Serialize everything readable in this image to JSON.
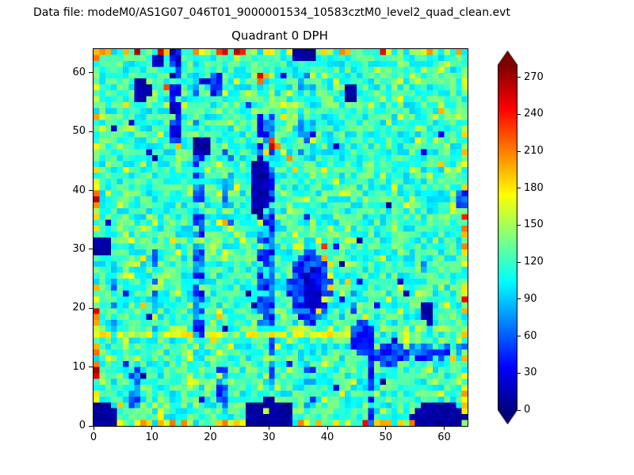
{
  "header": {
    "datafile_label": "Data file: modeM0/AS1G07_046T01_9000001534_10583cztM0_level2_quad_clean.evt"
  },
  "chart_data": {
    "type": "heatmap",
    "title": "Quadrant 0 DPH",
    "xlabel": "",
    "ylabel": "",
    "xlim": [
      0,
      64
    ],
    "ylim": [
      0,
      64
    ],
    "xticks": [
      0,
      10,
      20,
      30,
      40,
      50,
      60
    ],
    "yticks": [
      0,
      10,
      20,
      30,
      40,
      50,
      60
    ],
    "grid": {
      "nx": 64,
      "ny": 64
    },
    "colormap": "jet",
    "colorbar": {
      "ticks": [
        0,
        30,
        60,
        90,
        120,
        150,
        180,
        210,
        240,
        270
      ],
      "vmin": 0,
      "vmax": 280,
      "extend": "both",
      "over_color": "#7f0000",
      "under_color": "#00007f"
    },
    "seed": 1534,
    "background": {
      "mean": 118,
      "spread": 26
    },
    "features": {
      "edge_hot": {
        "p": 0.45,
        "v0": 140,
        "v1": 215,
        "red_p": 0.05,
        "red_v0": 232,
        "red_v1": 272
      },
      "stripes": [
        {
          "x0": 0,
          "x1": 46,
          "y0": 15,
          "y1": 15,
          "v0": 145,
          "v1": 190,
          "p": 0.75
        },
        {
          "x0": 0,
          "x1": 63,
          "y0": 16,
          "y1": 16,
          "v0": 138,
          "v1": 160,
          "p": 0.25
        },
        {
          "x0": 16,
          "x1": 16,
          "y0": 1,
          "y1": 14,
          "v0": 145,
          "v1": 175,
          "p": 0.4
        },
        {
          "x0": 2,
          "x1": 8,
          "y0": 31,
          "y1": 32,
          "v0": 145,
          "v1": 180,
          "p": 0.3
        },
        {
          "x0": 13,
          "x1": 14,
          "y0": 48,
          "y1": 63,
          "v0": 5,
          "v1": 60,
          "p": 0.85
        },
        {
          "x0": 17,
          "x1": 18,
          "y0": 15,
          "y1": 48,
          "v0": 25,
          "v1": 90,
          "p": 0.75
        },
        {
          "x0": 17,
          "x1": 17,
          "y0": 49,
          "y1": 59,
          "v0": 60,
          "v1": 100,
          "p": 0.45
        },
        {
          "x0": 28,
          "x1": 30,
          "y0": 16,
          "y1": 52,
          "v0": 25,
          "v1": 85,
          "p": 0.7
        },
        {
          "x0": 30,
          "x1": 30,
          "y0": 0,
          "y1": 15,
          "v0": 35,
          "v1": 90,
          "p": 0.8
        },
        {
          "x0": 35,
          "x1": 37,
          "y0": 45,
          "y1": 63,
          "v0": 55,
          "v1": 100,
          "p": 0.45
        },
        {
          "x0": 47,
          "x1": 47,
          "y0": 0,
          "y1": 14,
          "v0": 30,
          "v1": 85,
          "p": 0.85
        },
        {
          "x0": 21,
          "x1": 22,
          "y0": 3,
          "y1": 9,
          "v0": 35,
          "v1": 90,
          "p": 0.7
        },
        {
          "x0": 6,
          "x1": 7,
          "y0": 3,
          "y1": 9,
          "v0": 35,
          "v1": 85,
          "p": 0.65
        },
        {
          "x0": 10,
          "x1": 10,
          "y0": 16,
          "y1": 30,
          "v0": 55,
          "v1": 95,
          "p": 0.55
        },
        {
          "x0": 3,
          "x1": 3,
          "y0": 16,
          "y1": 27,
          "v0": 55,
          "v1": 95,
          "p": 0.45
        },
        {
          "x0": 22,
          "x1": 23,
          "y0": 33,
          "y1": 47,
          "v0": 55,
          "v1": 95,
          "p": 0.4
        },
        {
          "x0": 50,
          "x1": 63,
          "y0": 11,
          "y1": 13,
          "v0": 30,
          "v1": 85,
          "p": 0.65
        },
        {
          "x0": 36,
          "x1": 37,
          "y0": 3,
          "y1": 9,
          "v0": 40,
          "v1": 85,
          "p": 0.55
        },
        {
          "x0": 56,
          "x1": 56,
          "y0": 26,
          "y1": 34,
          "v0": 70,
          "v1": 100,
          "p": 0.4
        },
        {
          "x0": 41,
          "x1": 44,
          "y0": 18,
          "y1": 22,
          "v0": 50,
          "v1": 95,
          "p": 0.35
        }
      ],
      "blobs": [
        {
          "x": 36.5,
          "y": 23,
          "rx": 3.6,
          "ry": 6.2,
          "v0": 30,
          "v1": 75
        },
        {
          "x": 37,
          "y": 22.5,
          "rx": 2.0,
          "ry": 3.8,
          "v0": 8,
          "v1": 45
        },
        {
          "x": 45.5,
          "y": 14.5,
          "rx": 2.3,
          "ry": 2.6,
          "v0": 30,
          "v1": 70
        },
        {
          "x": 50,
          "y": 11.5,
          "rx": 2.2,
          "ry": 1.8,
          "v0": 30,
          "v1": 70
        },
        {
          "x": 27.8,
          "y": 40,
          "rx": 1.7,
          "ry": 5.6,
          "v0": 3,
          "v1": 25
        },
        {
          "x": 1.2,
          "y": 1.2,
          "rx": 2.4,
          "ry": 2.2,
          "v0": 3,
          "v1": 15
        },
        {
          "x": 29.5,
          "y": 1.5,
          "rx": 4.4,
          "ry": 2.6,
          "v0": 3,
          "v1": 15
        },
        {
          "x": 58.5,
          "y": 1.3,
          "rx": 4.6,
          "ry": 2.4,
          "v0": 3,
          "v1": 15
        },
        {
          "x": 0.6,
          "y": 30,
          "rx": 1.8,
          "ry": 1.7,
          "v0": 3,
          "v1": 15
        },
        {
          "x": 7.6,
          "y": 56.5,
          "rx": 1.5,
          "ry": 2.1,
          "v0": 3,
          "v1": 18
        },
        {
          "x": 18,
          "y": 47,
          "rx": 1.6,
          "ry": 1.4,
          "v0": 3,
          "v1": 20
        },
        {
          "x": 43.5,
          "y": 55.8,
          "rx": 1.4,
          "ry": 1.3,
          "v0": 3,
          "v1": 18
        },
        {
          "x": 20.6,
          "y": 57.5,
          "rx": 1.2,
          "ry": 2.3,
          "v0": 25,
          "v1": 70
        },
        {
          "x": 35.5,
          "y": 62.6,
          "rx": 1.9,
          "ry": 1.3,
          "v0": 3,
          "v1": 18
        },
        {
          "x": 62.6,
          "y": 38,
          "rx": 1.3,
          "ry": 2.1,
          "v0": 35,
          "v1": 80
        },
        {
          "x": 56.5,
          "y": 19,
          "rx": 1.1,
          "ry": 1.5,
          "v0": 5,
          "v1": 25
        },
        {
          "x": 10.6,
          "y": 61.4,
          "rx": 1.1,
          "ry": 1.4,
          "v0": 5,
          "v1": 30
        }
      ],
      "spots": [
        {
          "x": 29,
          "y": 2,
          "v": 158
        },
        {
          "x": 30,
          "y": 47,
          "v": 258
        },
        {
          "x": 30,
          "y": 48,
          "v": 228
        },
        {
          "x": 31,
          "y": 47,
          "v": 205
        },
        {
          "x": 29,
          "y": 46,
          "v": 185
        },
        {
          "x": 33,
          "y": 45,
          "v": 205
        },
        {
          "x": 34,
          "y": 43,
          "v": 188
        },
        {
          "x": 39,
          "y": 30,
          "v": 232
        },
        {
          "x": 38,
          "y": 31,
          "v": 178
        },
        {
          "x": 39,
          "y": 28,
          "v": 198
        },
        {
          "x": 40,
          "y": 27,
          "v": 185
        },
        {
          "x": 40,
          "y": 25,
          "v": 172
        },
        {
          "x": 40,
          "y": 23,
          "v": 190
        },
        {
          "x": 39,
          "y": 21,
          "v": 170
        },
        {
          "x": 38,
          "y": 19,
          "v": 182
        },
        {
          "x": 28,
          "y": 59,
          "v": 252
        },
        {
          "x": 28,
          "y": 58,
          "v": 215
        },
        {
          "x": 29,
          "y": 59,
          "v": 196
        },
        {
          "x": 12,
          "y": 57,
          "v": 226
        },
        {
          "x": 14,
          "y": 47,
          "v": 192
        },
        {
          "x": 22,
          "y": 34,
          "v": 200
        },
        {
          "x": 21,
          "y": 34,
          "v": 175
        },
        {
          "x": 23,
          "y": 33,
          "v": 166
        },
        {
          "x": 25,
          "y": 31,
          "v": 168
        },
        {
          "x": 24,
          "y": 32,
          "v": 156
        },
        {
          "x": 49,
          "y": 63,
          "v": 248
        },
        {
          "x": 57,
          "y": 63,
          "v": 205
        },
        {
          "x": 21,
          "y": 63,
          "v": 228
        },
        {
          "x": 5,
          "y": 63,
          "v": 195
        },
        {
          "x": 33,
          "y": 63,
          "v": 178
        },
        {
          "x": 38,
          "y": 0,
          "v": 196
        },
        {
          "x": 41,
          "y": 0,
          "v": 182
        },
        {
          "x": 36,
          "y": 0,
          "v": 170
        },
        {
          "x": 9,
          "y": 0,
          "v": 186
        },
        {
          "x": 4,
          "y": 0,
          "v": 176
        },
        {
          "x": 12,
          "y": 0,
          "v": 165
        },
        {
          "x": 16,
          "y": 0,
          "v": 152
        },
        {
          "x": 0,
          "y": 5,
          "v": 182
        },
        {
          "x": 0,
          "y": 13,
          "v": 196
        },
        {
          "x": 0,
          "y": 21,
          "v": 172
        },
        {
          "x": 0,
          "y": 35,
          "v": 186
        },
        {
          "x": 0,
          "y": 41,
          "v": 166
        },
        {
          "x": 0,
          "y": 52,
          "v": 202
        },
        {
          "x": 0,
          "y": 57,
          "v": 172
        },
        {
          "x": 0,
          "y": 62,
          "v": 212
        },
        {
          "x": 63,
          "y": 8,
          "v": 176
        },
        {
          "x": 63,
          "y": 15,
          "v": 192
        },
        {
          "x": 63,
          "y": 22,
          "v": 162
        },
        {
          "x": 63,
          "y": 35,
          "v": 238
        },
        {
          "x": 63,
          "y": 44,
          "v": 172
        },
        {
          "x": 63,
          "y": 49,
          "v": 186
        },
        {
          "x": 63,
          "y": 58,
          "v": 166
        },
        {
          "x": 59,
          "y": 53,
          "v": 196
        },
        {
          "x": 52,
          "y": 55,
          "v": 172
        }
      ]
    }
  }
}
